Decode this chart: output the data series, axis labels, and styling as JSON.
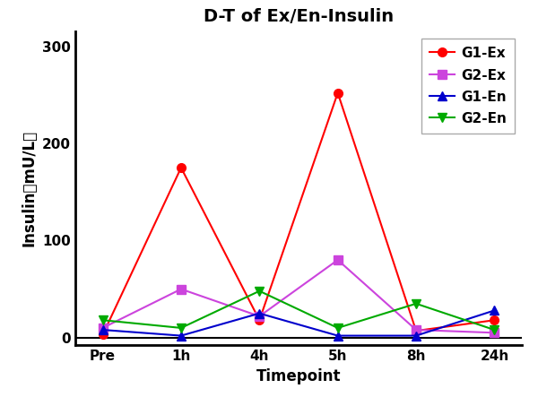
{
  "title": "D-T of Ex/En-Insulin",
  "xlabel": "Timepoint",
  "ylabel": "Insulin（mU/L）",
  "x_labels": [
    "Pre",
    "1h",
    "4h",
    "5h",
    "8h",
    "24h"
  ],
  "x_values": [
    0,
    1,
    2,
    3,
    4,
    5
  ],
  "series": [
    {
      "name": "G1-Ex",
      "values": [
        3,
        175,
        18,
        252,
        7,
        18
      ],
      "color": "#FF0000",
      "marker": "o",
      "marker_size": 7
    },
    {
      "name": "G2-Ex",
      "values": [
        10,
        50,
        22,
        80,
        8,
        5
      ],
      "color": "#CC44DD",
      "marker": "s",
      "marker_size": 7
    },
    {
      "name": "G1-En",
      "values": [
        8,
        2,
        25,
        2,
        2,
        28
      ],
      "color": "#0000CC",
      "marker": "^",
      "marker_size": 7
    },
    {
      "name": "G2-En",
      "values": [
        18,
        10,
        48,
        10,
        35,
        8
      ],
      "color": "#00AA00",
      "marker": "v",
      "marker_size": 7
    }
  ],
  "ylim": [
    -8,
    315
  ],
  "yticks": [
    0,
    100,
    200,
    300
  ],
  "xlim": [
    -0.35,
    5.35
  ],
  "background_color": "#ffffff",
  "border_color": "#000000",
  "title_fontsize": 14,
  "label_fontsize": 12,
  "tick_fontsize": 11,
  "legend_fontsize": 11
}
